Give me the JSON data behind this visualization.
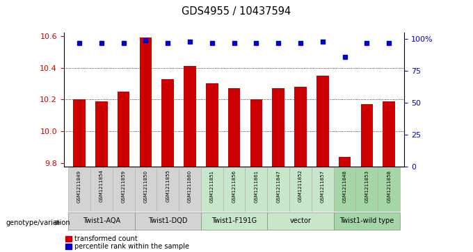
{
  "title": "GDS4955 / 10437594",
  "samples": [
    "GSM1211849",
    "GSM1211854",
    "GSM1211859",
    "GSM1211850",
    "GSM1211855",
    "GSM1211860",
    "GSM1211851",
    "GSM1211856",
    "GSM1211861",
    "GSM1211847",
    "GSM1211852",
    "GSM1211857",
    "GSM1211848",
    "GSM1211853",
    "GSM1211858"
  ],
  "bar_values": [
    10.2,
    10.19,
    10.25,
    10.59,
    10.33,
    10.41,
    10.3,
    10.27,
    10.2,
    10.27,
    10.28,
    10.35,
    9.84,
    10.17,
    10.19
  ],
  "percentile_values": [
    97,
    97,
    97,
    99,
    97,
    98,
    97,
    97,
    97,
    97,
    97,
    98,
    86,
    97,
    97
  ],
  "groups": [
    {
      "label": "Twist1-AQA",
      "indices": [
        0,
        1,
        2
      ],
      "color": "#d3d3d3"
    },
    {
      "label": "Twist1-DQD",
      "indices": [
        3,
        4,
        5
      ],
      "color": "#d3d3d3"
    },
    {
      "label": "Twist1-F191G",
      "indices": [
        6,
        7,
        8
      ],
      "color": "#c8e6c9"
    },
    {
      "label": "vector",
      "indices": [
        9,
        10,
        11
      ],
      "color": "#c8e6c9"
    },
    {
      "label": "Twist1-wild type",
      "indices": [
        12,
        13,
        14
      ],
      "color": "#a5d6a7"
    }
  ],
  "sample_group_indices": [
    0,
    0,
    0,
    1,
    1,
    1,
    2,
    2,
    2,
    3,
    3,
    3,
    4,
    4,
    4
  ],
  "group_colors": [
    "#d3d3d3",
    "#d3d3d3",
    "#c8e6c9",
    "#c8e6c9",
    "#a5d6a7"
  ],
  "ylim_left": [
    9.78,
    10.62
  ],
  "ylim_right": [
    0,
    105
  ],
  "yticks_left": [
    9.8,
    10.0,
    10.2,
    10.4,
    10.6
  ],
  "yticks_right": [
    0,
    25,
    50,
    75,
    100
  ],
  "ytick_labels_right": [
    "0",
    "25",
    "50",
    "75",
    "100%"
  ],
  "hgrid_lines": [
    10.0,
    10.2,
    10.4
  ],
  "bar_color": "#cc0000",
  "dot_color": "#0000cc",
  "legend_red": "transformed count",
  "legend_blue": "percentile rank within the sample",
  "genotype_label": "genotype/variation"
}
